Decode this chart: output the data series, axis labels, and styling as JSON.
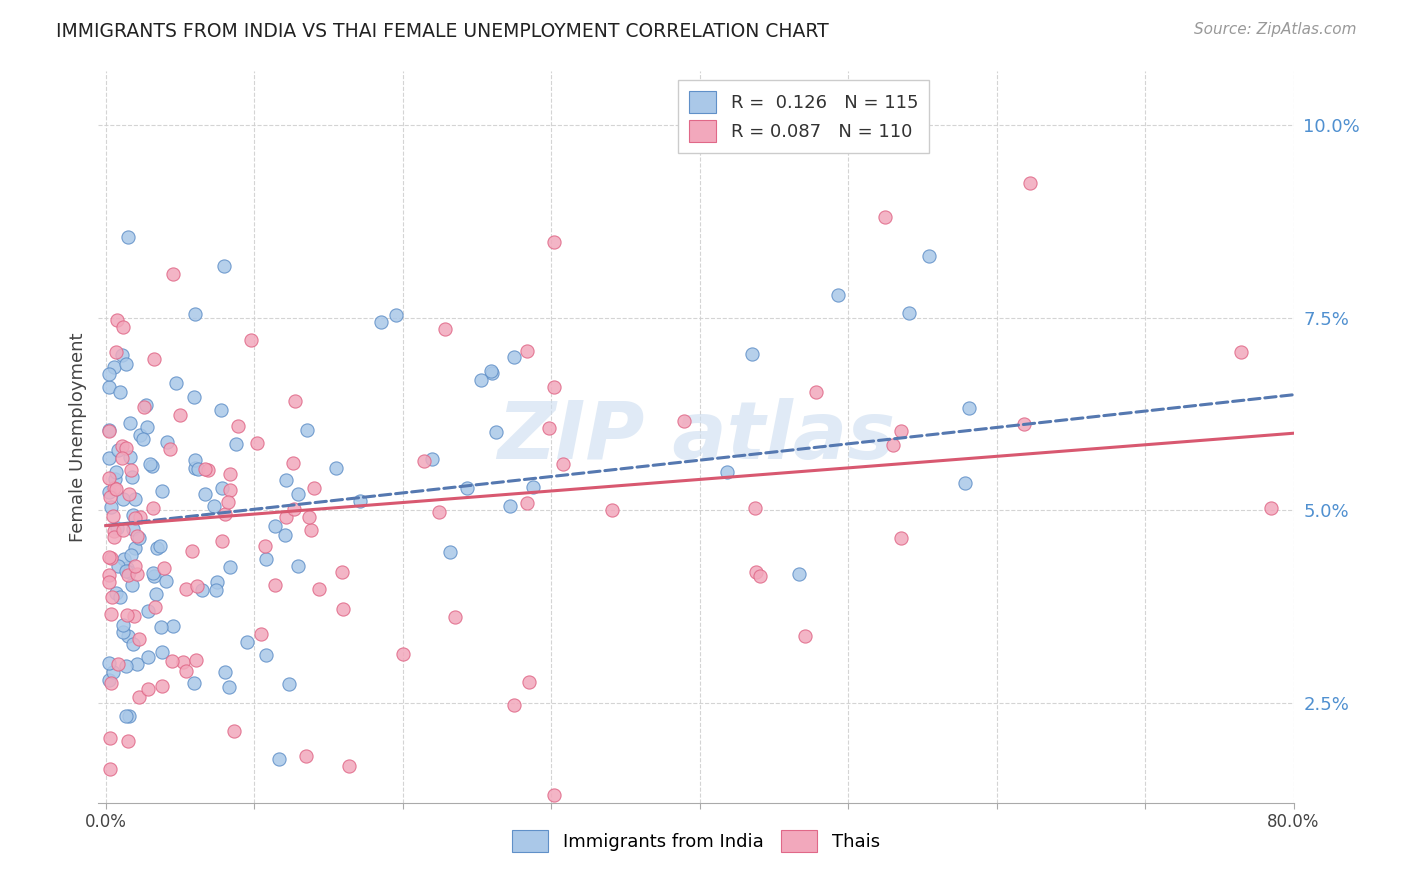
{
  "title": "IMMIGRANTS FROM INDIA VS THAI FEMALE UNEMPLOYMENT CORRELATION CHART",
  "source": "Source: ZipAtlas.com",
  "ylabel": "Female Unemployment",
  "ytick_values": [
    0.025,
    0.05,
    0.075,
    0.1
  ],
  "xlim": [
    -0.005,
    0.8
  ],
  "ylim": [
    0.012,
    0.107
  ],
  "legend1_r": "0.126",
  "legend1_n": "115",
  "legend2_r": "0.087",
  "legend2_n": "110",
  "color_india": "#aac8e8",
  "color_thai": "#f2a8bc",
  "color_india_edge": "#6090c8",
  "color_thai_edge": "#e06888",
  "color_india_line": "#5578b0",
  "color_thai_line": "#d85870",
  "background_color": "#ffffff",
  "grid_color": "#d0d0d0",
  "title_color": "#222222",
  "source_color": "#999999",
  "ytick_color": "#5090d0",
  "watermark_color": "#ccddf0"
}
